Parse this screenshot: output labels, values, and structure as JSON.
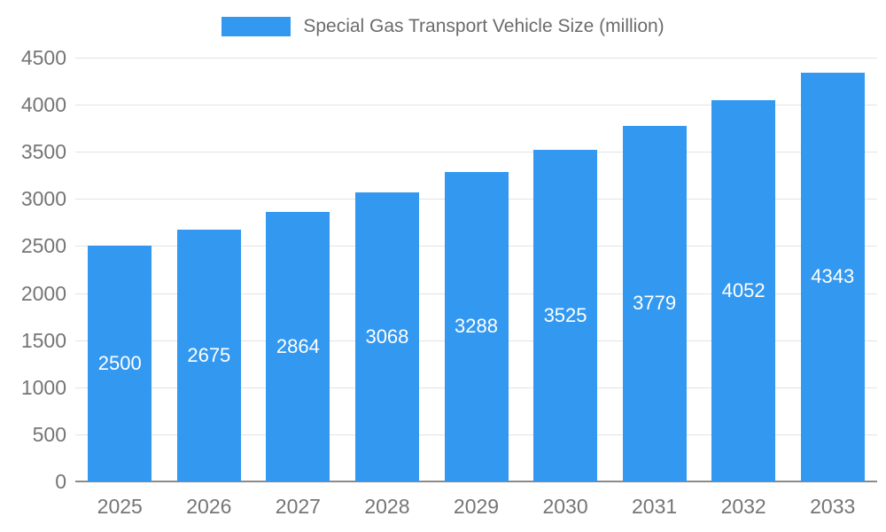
{
  "chart_data": {
    "type": "bar",
    "title": "Special Gas Transport Vehicle Size (million)",
    "categories": [
      "2025",
      "2026",
      "2027",
      "2028",
      "2029",
      "2030",
      "2031",
      "2032",
      "2033"
    ],
    "values": [
      2500,
      2675,
      2864,
      3068,
      3288,
      3525,
      3779,
      4052,
      4343
    ],
    "xlabel": "",
    "ylabel": "",
    "ylim": [
      0,
      4500
    ],
    "ytick_step": 500,
    "ytick_labels": [
      "0",
      "500",
      "1000",
      "1500",
      "2000",
      "2500",
      "3000",
      "3500",
      "4000",
      "4500"
    ],
    "grid": true,
    "legend_position": "top",
    "bar_color": "#3398f0",
    "value_label_color": "#ffffff",
    "axis_text_color": "#757575",
    "gridline_color": "#e3e3e3"
  }
}
